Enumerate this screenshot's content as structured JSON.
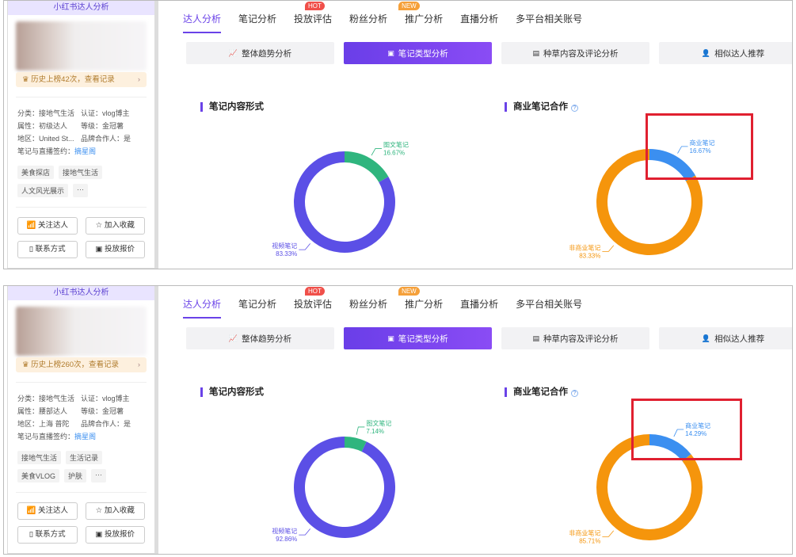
{
  "panels": [
    {
      "sidebar": {
        "title": "小红书达人分析",
        "rank_text": "历史上榜42次，查看记录",
        "info": [
          [
            "分类：接地气生活",
            "认证：vlog博主"
          ],
          [
            "属性：初级达人",
            "等级：金冠薯"
          ],
          [
            "地区：United St...",
            "品牌合作人：是"
          ]
        ],
        "sign_label": "笔记与直播签约：",
        "sign_value": "摘星阁",
        "tags": [
          "美食探店",
          "接地气生活",
          "人文风光展示",
          "···"
        ],
        "buttons": [
          "关注达人",
          "加入收藏",
          "联系方式",
          "投放报价"
        ]
      },
      "nav": [
        {
          "label": "达人分析",
          "active": true
        },
        {
          "label": "笔记分析"
        },
        {
          "label": "投放评估",
          "badge": "HOT"
        },
        {
          "label": "粉丝分析"
        },
        {
          "label": "推广分析",
          "badge": "NEW"
        },
        {
          "label": "直播分析"
        },
        {
          "label": "多平台相关账号"
        }
      ],
      "subtabs": [
        {
          "label": "整体趋势分析",
          "icon": "trend-chart-icon"
        },
        {
          "label": "笔记类型分析",
          "icon": "note-icon",
          "active": true
        },
        {
          "label": "种草内容及评论分析",
          "icon": "comment-icon"
        },
        {
          "label": "相似达人推荐",
          "icon": "user-icon"
        }
      ]
    },
    {
      "sidebar": {
        "title": "小红书达人分析",
        "rank_text": "历史上榜260次，查看记录",
        "info": [
          [
            "分类：接地气生活",
            "认证：vlog博主"
          ],
          [
            "属性：腰部达人",
            "等级：金冠薯"
          ],
          [
            "地区：上海 普陀",
            "品牌合作人：是"
          ]
        ],
        "sign_label": "笔记与直播签约：",
        "sign_value": "摘星阁",
        "tags": [
          "接地气生活",
          "生活记录",
          "美食VLOG",
          "护肤",
          "···"
        ],
        "buttons": [
          "关注达人",
          "加入收藏",
          "联系方式",
          "投放报价"
        ]
      },
      "nav": [
        {
          "label": "达人分析",
          "active": true
        },
        {
          "label": "笔记分析"
        },
        {
          "label": "投放评估",
          "badge": "HOT"
        },
        {
          "label": "粉丝分析"
        },
        {
          "label": "推广分析",
          "badge": "NEW"
        },
        {
          "label": "直播分析"
        },
        {
          "label": "多平台相关账号"
        }
      ],
      "subtabs": [
        {
          "label": "整体趋势分析",
          "icon": "trend-chart-icon"
        },
        {
          "label": "笔记类型分析",
          "icon": "note-icon",
          "active": true
        },
        {
          "label": "种草内容及评论分析",
          "icon": "comment-icon"
        },
        {
          "label": "相似达人推荐",
          "icon": "user-icon"
        }
      ]
    }
  ],
  "colors": {
    "accent": "#6a42e8",
    "hot": "#f0504a",
    "new": "#f5a03a",
    "highlight_box": "#e02030"
  },
  "chart_data": [
    {
      "type": "pie",
      "title": "笔记内容形式",
      "donut": true,
      "slices": [
        {
          "label": "图文笔记",
          "value": 16.67,
          "text": "16.67%",
          "color": "#2fb57e"
        },
        {
          "label": "视频笔记",
          "value": 83.33,
          "text": "83.33%",
          "color": "#5b4fe6"
        }
      ]
    },
    {
      "type": "pie",
      "title": "商业笔记合作",
      "donut": true,
      "slices": [
        {
          "label": "商业笔记",
          "value": 16.67,
          "text": "16.67%",
          "color": "#3b8ff0"
        },
        {
          "label": "非商业笔记",
          "value": 83.33,
          "text": "83.33%",
          "color": "#f5950c"
        }
      ]
    },
    {
      "type": "pie",
      "title": "笔记内容形式",
      "donut": true,
      "slices": [
        {
          "label": "图文笔记",
          "value": 7.14,
          "text": "7.14%",
          "color": "#2fb57e"
        },
        {
          "label": "视频笔记",
          "value": 92.86,
          "text": "92.86%",
          "color": "#5b4fe6"
        }
      ]
    },
    {
      "type": "pie",
      "title": "商业笔记合作",
      "donut": true,
      "slices": [
        {
          "label": "商业笔记",
          "value": 14.29,
          "text": "14.29%",
          "color": "#3b8ff0"
        },
        {
          "label": "非商业笔记",
          "value": 85.71,
          "text": "85.71%",
          "color": "#f5950c"
        }
      ]
    }
  ]
}
